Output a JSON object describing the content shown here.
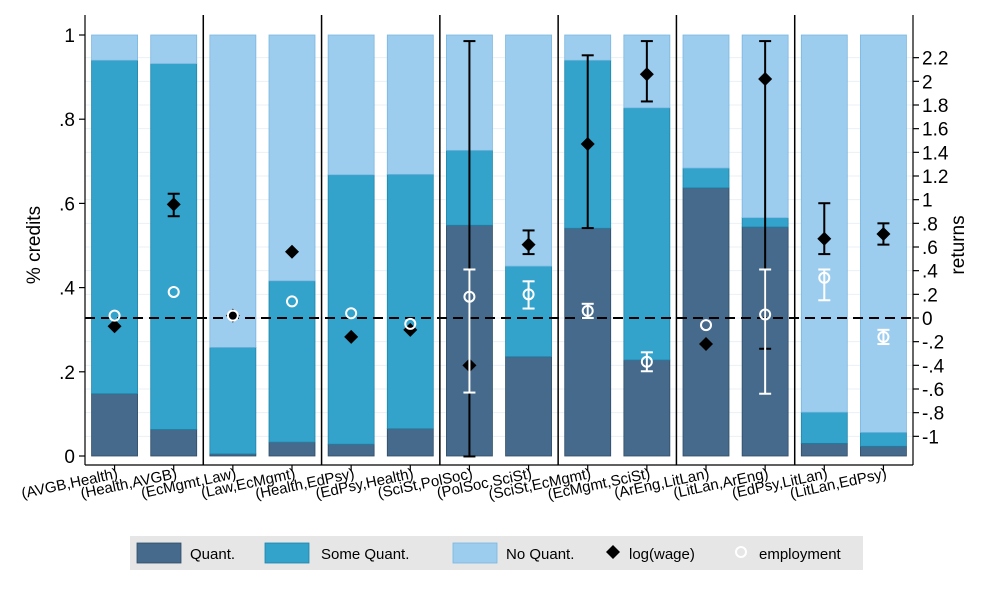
{
  "chart_data": {
    "type": "bar",
    "stacked": true,
    "ylabel_left": "% credits",
    "ylabel_right": "returns",
    "ylim_left": [
      0,
      1
    ],
    "ylim_right": [
      -1.2,
      2.4
    ],
    "yticks_left": [
      {
        "v": 0,
        "label": "0"
      },
      {
        "v": 0.2,
        "label": ".2"
      },
      {
        "v": 0.4,
        "label": ".4"
      },
      {
        "v": 0.6,
        "label": ".6"
      },
      {
        "v": 0.8,
        "label": ".8"
      },
      {
        "v": 1,
        "label": "1"
      }
    ],
    "yticks_right": [
      {
        "v": -1,
        "label": "-1"
      },
      {
        "v": -0.8,
        "label": "-.8"
      },
      {
        "v": -0.6,
        "label": "-.6"
      },
      {
        "v": -0.4,
        "label": "-.4"
      },
      {
        "v": -0.2,
        "label": "-.2"
      },
      {
        "v": 0,
        "label": "0"
      },
      {
        "v": 0.2,
        "label": ".2"
      },
      {
        "v": 0.4,
        "label": ".4"
      },
      {
        "v": 0.6,
        "label": ".6"
      },
      {
        "v": 0.8,
        "label": ".8"
      },
      {
        "v": 1,
        "label": "1"
      },
      {
        "v": 1.2,
        "label": "1.2"
      },
      {
        "v": 1.4,
        "label": "1.4"
      },
      {
        "v": 1.6,
        "label": "1.6"
      },
      {
        "v": 1.8,
        "label": "1.8"
      },
      {
        "v": 2,
        "label": "2"
      },
      {
        "v": 2.2,
        "label": "2.2"
      }
    ],
    "categories": [
      "(AVGB,Health)",
      "(Health,AVGB)",
      "(EcMgmt,Law)",
      "(Law,EcMgmt)",
      "(Health,EdPsy)",
      "(EdPsy,Health)",
      "(SciSt,PolSoc)",
      "(PolSoc,SciSt)",
      "(SciSt,EcMgmt)",
      "(EcMgmt,SciSt)",
      "(ArEng,LitLan)",
      "(LitLan,ArEng)",
      "(EdPsy,LitLan)",
      "(LitLan,EdPsy)"
    ],
    "series": [
      {
        "name": "Quant.",
        "color": "#466a8c",
        "values": [
          0.148,
          0.063,
          0.005,
          0.033,
          0.028,
          0.065,
          0.548,
          0.236,
          0.541,
          0.228,
          0.637,
          0.544,
          0.03,
          0.023
        ]
      },
      {
        "name": "Some Quant.",
        "color": "#33a3cc",
        "values": [
          0.792,
          0.869,
          0.253,
          0.383,
          0.64,
          0.604,
          0.178,
          0.215,
          0.399,
          0.599,
          0.047,
          0.022,
          0.074,
          0.033
        ]
      },
      {
        "name": "No Quant.",
        "color": "#9dcdee",
        "values": [
          0.06,
          0.068,
          0.742,
          0.584,
          0.332,
          0.331,
          0.274,
          0.549,
          0.06,
          0.173,
          0.316,
          0.434,
          0.896,
          0.944
        ]
      }
    ],
    "log_wage": {
      "name": "log(wage)",
      "estimate": [
        -0.07,
        0.96,
        0.02,
        0.56,
        -0.16,
        -0.1,
        -0.4,
        0.62,
        1.47,
        2.06,
        -0.22,
        2.02,
        0.67,
        0.71
      ],
      "ci_low": [
        null,
        0.86,
        null,
        null,
        null,
        null,
        -1.17,
        0.54,
        0.76,
        1.83,
        null,
        -0.26,
        0.54,
        0.62
      ],
      "ci_high": [
        null,
        1.05,
        null,
        null,
        null,
        null,
        2.34,
        0.74,
        2.22,
        2.34,
        null,
        2.34,
        0.97,
        0.8
      ]
    },
    "employment": {
      "name": "employment",
      "estimate": [
        0.02,
        0.22,
        0.02,
        0.14,
        0.04,
        -0.05,
        0.18,
        0.2,
        0.06,
        -0.37,
        -0.06,
        0.03,
        0.34,
        -0.16
      ],
      "ci_low": [
        null,
        null,
        null,
        null,
        null,
        null,
        -0.63,
        0.08,
        0.0,
        -0.45,
        null,
        -0.64,
        0.15,
        -0.22
      ],
      "ci_high": [
        null,
        null,
        null,
        null,
        null,
        null,
        0.41,
        0.31,
        0.12,
        -0.29,
        null,
        0.41,
        0.41,
        -0.1
      ]
    },
    "reference_line": {
      "axis": "right",
      "value": 0,
      "style": "dashed"
    },
    "legend": {
      "placement": "bottom",
      "entries": [
        "Quant.",
        "Some Quant.",
        "No Quant.",
        "log(wage)",
        "employment"
      ]
    }
  }
}
